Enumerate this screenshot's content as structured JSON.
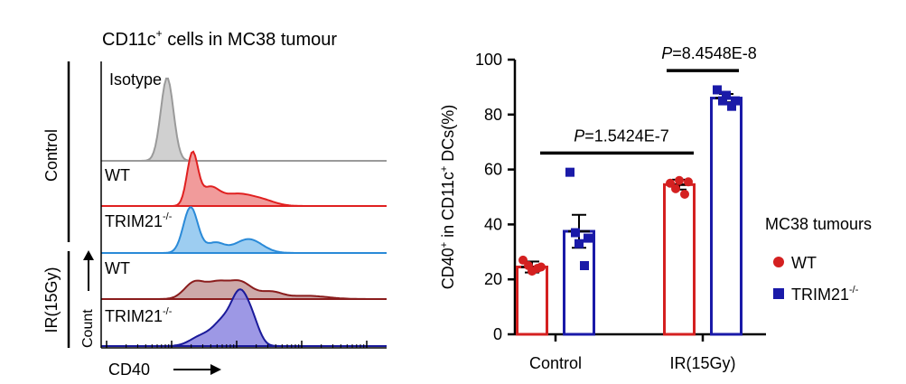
{
  "flow": {
    "title_main": "CD11c",
    "title_sup": "+",
    "title_rest": " cells in MC38 tumour",
    "group_labels": [
      "Control",
      "IR(15Gy)"
    ],
    "count_label": "Count",
    "x_label": "CD40",
    "tracks": [
      {
        "label": "Isotype",
        "sup": "",
        "fill": "#c8c8c8",
        "stroke": "#9a9a9a"
      },
      {
        "label": "WT",
        "sup": "",
        "fill": "#ef8a8a",
        "stroke": "#e02020"
      },
      {
        "label": "TRIM21",
        "sup": "-/-",
        "fill": "#8cc4ee",
        "stroke": "#2a8ad8"
      },
      {
        "label": "WT",
        "sup": "",
        "fill": "#c49a9a",
        "stroke": "#8a1c1c"
      },
      {
        "label": "TRIM21",
        "sup": "-/-",
        "fill": "#8c86e0",
        "stroke": "#1a1a9a"
      }
    ]
  },
  "chart_data": {
    "type": "bar",
    "categories": [
      "Control",
      "IR(15Gy)"
    ],
    "ylabel_parts": [
      "CD40",
      "+",
      " in CD11c",
      "+",
      " DCs(%)"
    ],
    "ylim": [
      0,
      100
    ],
    "yticks": [
      "0",
      "20",
      "40",
      "60",
      "80",
      "100"
    ],
    "legend_title": "MC38 tumours",
    "series": [
      {
        "name": "WT",
        "name_sup": "",
        "color": "#d42020",
        "fill": "#ffffff",
        "marker": "circle",
        "values": [
          24.5,
          54.5
        ],
        "sem": [
          2.0,
          1.8
        ],
        "points": [
          [
            27,
            25,
            23,
            24,
            24.5
          ],
          [
            55,
            53,
            56,
            51,
            55.5
          ]
        ]
      },
      {
        "name": "TRIM21",
        "name_sup": "-/-",
        "color": "#1a1aa8",
        "fill": "#ffffff",
        "marker": "square",
        "values": [
          37.5,
          86
        ],
        "sem": [
          6.0,
          1.5
        ],
        "points": [
          [
            59,
            37,
            33,
            25,
            35
          ],
          [
            89,
            85,
            87,
            83,
            85
          ]
        ]
      }
    ],
    "comparisons": [
      {
        "label_italic": "P",
        "label_rest": "=1.5424E-7",
        "y": 66
      },
      {
        "label_italic": "P",
        "label_rest": "=8.4548E-8",
        "y": 96
      }
    ]
  }
}
